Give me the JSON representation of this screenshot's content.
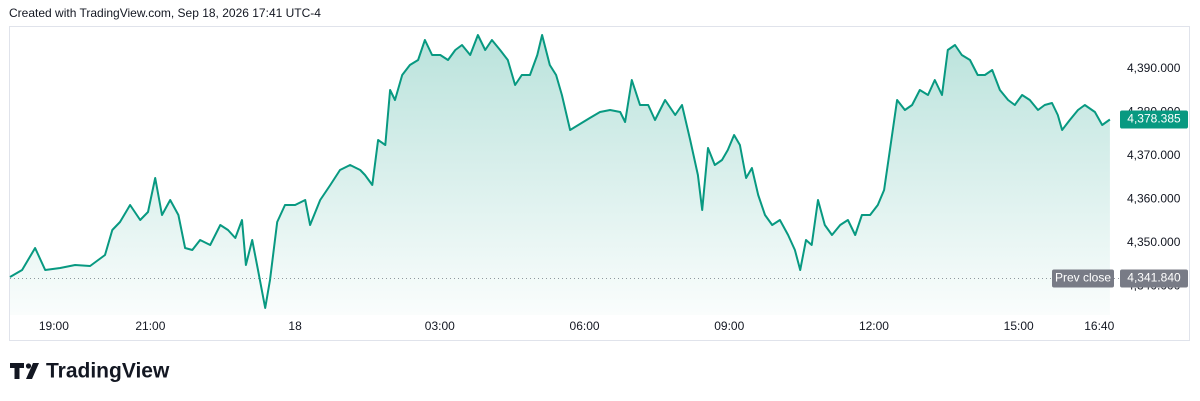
{
  "header": {
    "text": "Created with TradingView.com, Sep 18, 2026 17:41 UTC-4"
  },
  "footer": {
    "brand": "TradingView"
  },
  "chart_data": {
    "type": "area",
    "color": "#089981",
    "x": [
      -5.91,
      -5.66,
      -5.39,
      -5.18,
      -4.87,
      -4.56,
      -4.25,
      -3.94,
      -3.79,
      -3.63,
      -3.42,
      -3.21,
      -3.05,
      -2.9,
      -2.76,
      -2.59,
      -2.42,
      -2.28,
      -2.13,
      -1.97,
      -1.76,
      -1.55,
      -1.39,
      -1.24,
      -1.1,
      -1.02,
      -0.89,
      -0.77,
      -0.62,
      -0.52,
      -0.37,
      -0.21,
      0,
      0.21,
      0.31,
      0.52,
      0.73,
      0.93,
      1.14,
      1.35,
      1.45,
      1.6,
      1.72,
      1.87,
      1.97,
      2.07,
      2.22,
      2.38,
      2.55,
      2.69,
      2.84,
      3.01,
      3.17,
      3.32,
      3.46,
      3.63,
      3.79,
      3.94,
      4.08,
      4.25,
      4.41,
      4.56,
      4.7,
      4.87,
      5.02,
      5.12,
      5.28,
      5.41,
      5.53,
      5.7,
      5.87,
      6.11,
      6.32,
      6.53,
      6.74,
      6.84,
      6.98,
      7.15,
      7.32,
      7.46,
      7.67,
      7.88,
      8.02,
      8.19,
      8.35,
      8.44,
      8.56,
      8.7,
      8.85,
      8.97,
      9.1,
      9.22,
      9.35,
      9.47,
      9.6,
      9.74,
      9.89,
      10.05,
      10.22,
      10.36,
      10.47,
      10.59,
      10.71,
      10.84,
      10.98,
      11.13,
      11.3,
      11.46,
      11.61,
      11.75,
      11.92,
      12.08,
      12.21,
      12.33,
      12.48,
      12.64,
      12.79,
      12.95,
      13.12,
      13.26,
      13.41,
      13.53,
      13.68,
      13.82,
      13.99,
      14.15,
      14.3,
      14.45,
      14.61,
      14.78,
      14.92,
      15.07,
      15.23,
      15.4,
      15.54,
      15.69,
      15.81,
      15.9,
      16.06,
      16.23,
      16.37,
      16.58,
      16.73,
      16.89
    ],
    "values": [
      4342.18,
      4343.79,
      4348.85,
      4343.79,
      4344.25,
      4344.94,
      4344.71,
      4347.24,
      4352.99,
      4354.83,
      4358.73,
      4355.29,
      4357.13,
      4364.94,
      4356.44,
      4359.89,
      4356.44,
      4348.85,
      4348.39,
      4350.69,
      4349.54,
      4354.14,
      4352.99,
      4351.15,
      4355.29,
      4344.94,
      4350.69,
      4343.79,
      4335.06,
      4341.49,
      4354.83,
      4358.73,
      4358.73,
      4359.89,
      4354.14,
      4359.89,
      4363.33,
      4366.78,
      4367.93,
      4366.78,
      4365.63,
      4363.33,
      4373.68,
      4372.53,
      4385.17,
      4382.87,
      4388.62,
      4390.92,
      4392.07,
      4396.67,
      4393.22,
      4393.22,
      4392.07,
      4394.37,
      4395.52,
      4393.22,
      4397.82,
      4394.37,
      4396.67,
      4394.37,
      4392.07,
      4386.32,
      4388.62,
      4388.62,
      4393.22,
      4397.82,
      4390.92,
      4388.62,
      4384.02,
      4375.98,
      4377.13,
      4378.74,
      4380.11,
      4380.57,
      4380.11,
      4377.82,
      4387.47,
      4381.72,
      4381.72,
      4378.28,
      4382.87,
      4379.43,
      4381.72,
      4373.68,
      4365.63,
      4357.59,
      4371.84,
      4367.93,
      4369.08,
      4371.38,
      4374.83,
      4372.53,
      4364.94,
      4367.24,
      4361.03,
      4356.44,
      4354.14,
      4355.29,
      4351.84,
      4348.39,
      4343.79,
      4350.69,
      4349.54,
      4359.89,
      4354.14,
      4351.84,
      4354.14,
      4355.29,
      4351.84,
      4356.44,
      4356.44,
      4358.73,
      4362.18,
      4371.38,
      4382.87,
      4380.57,
      4381.72,
      4385.17,
      4384.02,
      4387.47,
      4384.02,
      4394.37,
      4395.52,
      4393.22,
      4392.07,
      4388.62,
      4388.62,
      4389.77,
      4385.17,
      4382.87,
      4381.72,
      4384.02,
      4382.87,
      4380.57,
      4381.72,
      4382.18,
      4379.43,
      4375.98,
      4378.28,
      4380.57,
      4381.72,
      4380.11,
      4377.13,
      4378.385
    ],
    "last_value_label": "4,378.385",
    "prev_close": {
      "name": "Prev close",
      "value": 4341.84,
      "label": "4,341.840"
    },
    "xlim": [
      -5.91,
      17.1
    ],
    "ylim": [
      4333.45,
      4399.89
    ],
    "xticks": [
      {
        "value": -5,
        "label": "19:00"
      },
      {
        "value": -3,
        "label": "21:00"
      },
      {
        "value": 0,
        "label": "18"
      },
      {
        "value": 3,
        "label": "03:00"
      },
      {
        "value": 6,
        "label": "06:00"
      },
      {
        "value": 9,
        "label": "09:00"
      },
      {
        "value": 12,
        "label": "12:00"
      },
      {
        "value": 15,
        "label": "15:00"
      },
      {
        "value": 16.67,
        "label": "16:40"
      }
    ],
    "yticks": [
      {
        "value": 4340,
        "label": "4,340.000"
      },
      {
        "value": 4350,
        "label": "4,350.000"
      },
      {
        "value": 4360,
        "label": "4,360.000"
      },
      {
        "value": 4370,
        "label": "4,370.000"
      },
      {
        "value": 4380,
        "label": "4,380.000"
      },
      {
        "value": 4390,
        "label": "4,390.000"
      }
    ]
  }
}
